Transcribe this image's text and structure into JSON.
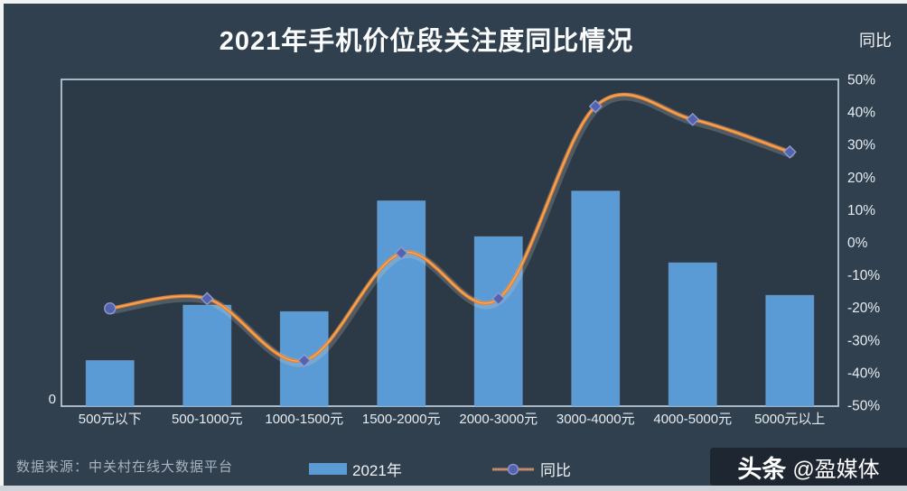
{
  "header": {
    "title": "2021年手机价位段关注度同比情况",
    "right_axis_title": "同比"
  },
  "legend": {
    "bar_label": "2021年",
    "line_label": "同比"
  },
  "footer": {
    "source_note": "数据来源：中关村在线大数据平台",
    "watermark_brand": "头条",
    "watermark_handle": "@盈媒体"
  },
  "colors": {
    "background": "#30404f",
    "plot_bg": "#2c3947",
    "plot_border": "#b6c5d1",
    "bar": "#5b9bd5",
    "bar_edge": "#79ade0",
    "line": "#e5813a",
    "line_core": "#f6b257",
    "line_glow": "#d8d4c9",
    "marker_fill": "#5563ac",
    "marker_stroke": "#8b9ad4",
    "axis_text": "#e6ecf1",
    "legend_line": "#c4886d"
  },
  "chart_data": {
    "type": "bar+line combo",
    "title": "2021年手机价位段关注度同比情况",
    "categories": [
      "500元以下",
      "500-1000元",
      "1000-1500元",
      "1500-2000元",
      "2000-3000元",
      "3000-4000元",
      "4000-5000元",
      "5000元以上"
    ],
    "series": [
      {
        "name": "2021年",
        "type": "bar",
        "axis": "left",
        "values": [
          14,
          31,
          29,
          63,
          52,
          66,
          44,
          34
        ],
        "note": "left axis shows only 0; values estimated as % of plot height (0-100)"
      },
      {
        "name": "同比",
        "type": "line",
        "axis": "right",
        "values_pct": [
          -20,
          -17,
          -36,
          -3,
          -17,
          42,
          38,
          28
        ]
      }
    ],
    "left_axis": {
      "only_label": "0",
      "max_norm": 100
    },
    "right_axis": {
      "title": "同比",
      "min": -50,
      "max": 50,
      "step": 10,
      "tick_labels": [
        "50%",
        "40%",
        "30%",
        "20%",
        "10%",
        "0%",
        "-10%",
        "-20%",
        "-30%",
        "-40%",
        "-50%"
      ]
    },
    "grid": false,
    "legend_position": "bottom"
  }
}
